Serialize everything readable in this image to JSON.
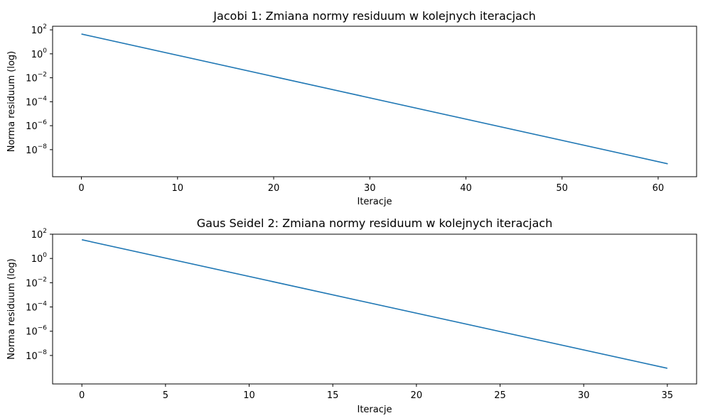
{
  "chart_data": [
    {
      "type": "line",
      "title": "Jacobi 1: Zmiana normy residuum w kolejnych iteracjach",
      "xlabel": "Iteracje",
      "ylabel": "Norma residuum (log)",
      "yscale": "log",
      "xlim": [
        -3,
        64
      ],
      "ylim": [
        5.5e-11,
        200
      ],
      "xticks": [
        0,
        10,
        20,
        30,
        40,
        50,
        60
      ],
      "yticks": [
        {
          "value": 100,
          "base": "10",
          "exp": "2"
        },
        {
          "value": 1,
          "base": "10",
          "exp": "0"
        },
        {
          "value": 0.01,
          "base": "10",
          "exp": "−2"
        },
        {
          "value": 0.0001,
          "base": "10",
          "exp": "−4"
        },
        {
          "value": 1e-06,
          "base": "10",
          "exp": "−6"
        },
        {
          "value": 1e-08,
          "base": "10",
          "exp": "−8"
        }
      ],
      "grid": false,
      "series": [
        {
          "color": "#1f77b4",
          "x": [
            0,
            61
          ],
          "y": [
            45,
            6.6e-10
          ]
        }
      ]
    },
    {
      "type": "line",
      "title": "Gaus Seidel 2: Zmiana normy residuum w kolejnych iteracjach",
      "xlabel": "Iteracje",
      "ylabel": "Norma residuum (log)",
      "yscale": "log",
      "xlim": [
        -1.75,
        36.75
      ],
      "ylim": [
        4.5e-11,
        100
      ],
      "xticks": [
        0,
        5,
        10,
        15,
        20,
        25,
        30,
        35
      ],
      "yticks": [
        {
          "value": 100,
          "base": "10",
          "exp": "2"
        },
        {
          "value": 1,
          "base": "10",
          "exp": "0"
        },
        {
          "value": 0.01,
          "base": "10",
          "exp": "−2"
        },
        {
          "value": 0.0001,
          "base": "10",
          "exp": "−4"
        },
        {
          "value": 1e-06,
          "base": "10",
          "exp": "−6"
        },
        {
          "value": 1e-08,
          "base": "10",
          "exp": "−8"
        }
      ],
      "grid": false,
      "series": [
        {
          "color": "#1f77b4",
          "x": [
            0,
            35
          ],
          "y": [
            35,
            8.8e-10
          ]
        }
      ]
    }
  ]
}
